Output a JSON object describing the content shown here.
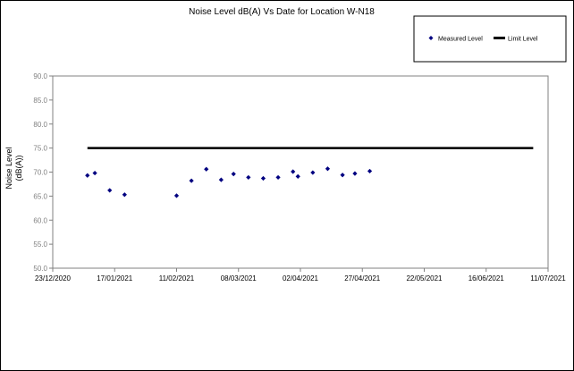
{
  "chart_data": {
    "type": "scatter",
    "title": "Noise Level dB(A) Vs Date for Location W-N18",
    "ylabel_line1": "Noise Level",
    "ylabel_line2": "(dB(A))",
    "xlabel": "",
    "ylim": [
      50,
      90
    ],
    "yticks": [
      "50.0",
      "55.0",
      "60.0",
      "65.0",
      "70.0",
      "75.0",
      "80.0",
      "85.0",
      "90.0"
    ],
    "xlim": [
      "2020-12-23",
      "2021-07-11"
    ],
    "xticks": [
      "23/12/2020",
      "17/01/2021",
      "11/02/2021",
      "08/03/2021",
      "02/04/2021",
      "27/04/2021",
      "22/05/2021",
      "16/06/2021",
      "11/07/2021"
    ],
    "grid": false,
    "legend_position": "top-right",
    "series": [
      {
        "name": "Measured Level",
        "color": "#000080",
        "marker": "diamond",
        "points": [
          {
            "x": "2021-01-06",
            "y": 69.3
          },
          {
            "x": "2021-01-09",
            "y": 69.8
          },
          {
            "x": "2021-01-15",
            "y": 66.2
          },
          {
            "x": "2021-01-21",
            "y": 65.3
          },
          {
            "x": "2021-02-11",
            "y": 65.1
          },
          {
            "x": "2021-02-17",
            "y": 68.2
          },
          {
            "x": "2021-02-23",
            "y": 70.6
          },
          {
            "x": "2021-03-01",
            "y": 68.4
          },
          {
            "x": "2021-03-06",
            "y": 69.6
          },
          {
            "x": "2021-03-12",
            "y": 68.9
          },
          {
            "x": "2021-03-18",
            "y": 68.7
          },
          {
            "x": "2021-03-24",
            "y": 68.9
          },
          {
            "x": "2021-03-30",
            "y": 70.1
          },
          {
            "x": "2021-04-01",
            "y": 69.1
          },
          {
            "x": "2021-04-07",
            "y": 69.9
          },
          {
            "x": "2021-04-13",
            "y": 70.7
          },
          {
            "x": "2021-04-19",
            "y": 69.4
          },
          {
            "x": "2021-04-24",
            "y": 69.7
          },
          {
            "x": "2021-04-30",
            "y": 70.2
          }
        ]
      },
      {
        "name": "Limit Level",
        "color": "#000000",
        "type": "line",
        "points": [
          {
            "x": "2021-01-06",
            "y": 75
          },
          {
            "x": "2021-07-05",
            "y": 75
          }
        ]
      }
    ]
  }
}
